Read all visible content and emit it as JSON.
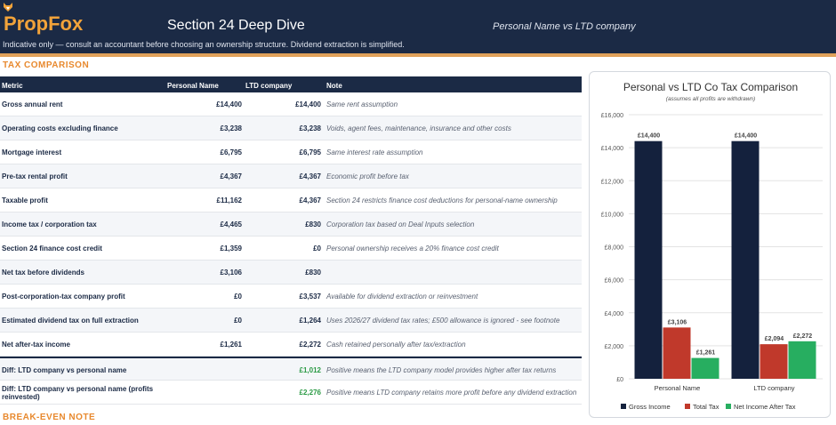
{
  "header": {
    "brand": "PropFox",
    "title": "Section 24 Deep Dive",
    "subtitle": "Personal Name vs LTD company",
    "disclaimer": "Indicative only — consult an accountant before choosing an ownership structure. Dividend extraction is simplified.",
    "brand_color": "#f2a33a",
    "bg_color": "#1b2a45",
    "logo_icon": "fox-icon"
  },
  "sections": {
    "comparison": "TAX COMPARISON",
    "breakeven": "BREAK-EVEN NOTE"
  },
  "table": {
    "headers": {
      "metric": "Metric",
      "personal": "Personal Name",
      "ltd": "LTD company",
      "note": "Note"
    },
    "rows": [
      {
        "metric": "Gross annual rent",
        "personal": "£14,400",
        "ltd": "£14,400",
        "note": "Same rent assumption"
      },
      {
        "metric": "Operating costs excluding finance",
        "personal": "£3,238",
        "ltd": "£3,238",
        "note": "Voids, agent fees, maintenance, insurance and other costs"
      },
      {
        "metric": "Mortgage interest",
        "personal": "£6,795",
        "ltd": "£6,795",
        "note": "Same interest rate assumption"
      },
      {
        "metric": "Pre-tax rental profit",
        "personal": "£4,367",
        "ltd": "£4,367",
        "note": "Economic profit before tax"
      },
      {
        "metric": "Taxable profit",
        "personal": "£11,162",
        "ltd": "£4,367",
        "note": "Section 24 restricts finance cost deductions for personal-name ownership"
      },
      {
        "metric": "Income tax / corporation tax",
        "personal": "£4,465",
        "ltd": "£830",
        "note": "Corporation tax based on Deal Inputs selection"
      },
      {
        "metric": "Section 24 finance cost credit",
        "personal": "£1,359",
        "ltd": "£0",
        "note": "Personal ownership receives a 20% finance cost credit"
      },
      {
        "metric": "Net tax before dividends",
        "personal": "£3,106",
        "ltd": "£830",
        "note": ""
      },
      {
        "metric": "Post-corporation-tax company profit",
        "personal": "£0",
        "ltd": "£3,537",
        "note": "Available for dividend extraction or reinvestment"
      },
      {
        "metric": "Estimated dividend tax on full extraction",
        "personal": "£0",
        "ltd": "£1,264",
        "note": "Uses 2026/27 dividend tax rates; £500 allowance is ignored - see footnote"
      },
      {
        "metric": "Net after-tax income",
        "personal": "£1,261",
        "ltd": "£2,272",
        "note": "Cash retained personally after tax/extraction"
      },
      {
        "metric": "Diff: LTD company vs personal name",
        "personal": "",
        "ltd": "£1,012",
        "note": "Positive means the LTD company model provides higher after tax returns"
      },
      {
        "metric": "Diff: LTD company vs personal name (profits reinvested)",
        "personal": "",
        "ltd": "£2,276",
        "note": "Positive means LTD company retains more profit before any dividend extraction"
      }
    ]
  },
  "chart_data": {
    "type": "bar",
    "title": "Personal vs LTD Co Tax Comparison",
    "subtitle": "(assumes all profits are withdrawn)",
    "categories": [
      "Personal Name",
      "LTD company"
    ],
    "series": [
      {
        "name": "Gross Income",
        "color": "#14213d",
        "values": [
          14400,
          14400
        ],
        "labels": [
          "£14,400",
          "£14,400"
        ]
      },
      {
        "name": "Total Tax",
        "color": "#c0392b",
        "values": [
          3106,
          2094
        ],
        "labels": [
          "£3,106",
          "£2,094"
        ]
      },
      {
        "name": "Net Income After Tax",
        "color": "#27ae60",
        "values": [
          1261,
          2272
        ],
        "labels": [
          "£1,261",
          "£2,272"
        ]
      }
    ],
    "ylim": [
      0,
      16000
    ],
    "yticks": [
      "£0",
      "£2,000",
      "£4,000",
      "£6,000",
      "£8,000",
      "£10,000",
      "£12,000",
      "£14,000",
      "£16,000"
    ],
    "ytick_values": [
      0,
      2000,
      4000,
      6000,
      8000,
      10000,
      12000,
      14000,
      16000
    ],
    "grid": true,
    "legend": "bottom"
  }
}
